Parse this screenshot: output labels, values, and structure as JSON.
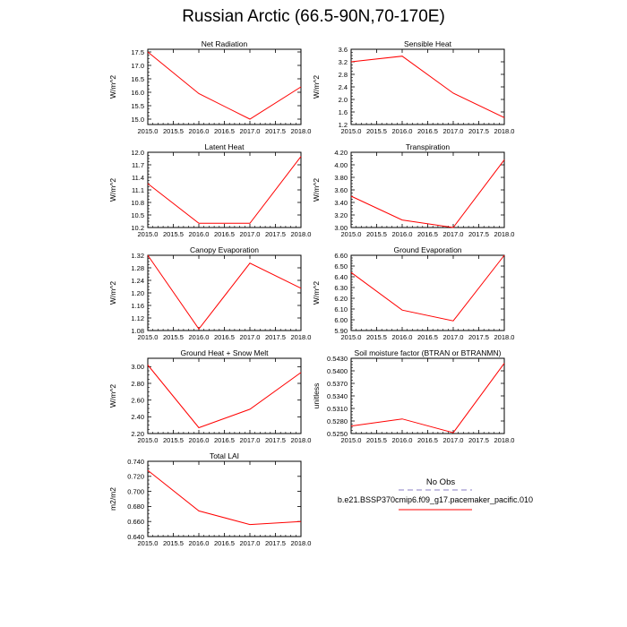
{
  "title": "Russian Arctic (66.5-90N,70-170E)",
  "colors": {
    "series": "#ff0000",
    "obs": "#b0a8d8",
    "axis": "#000000"
  },
  "chart_data": [
    {
      "type": "line",
      "title": "Net Radiation",
      "ylabel": "W/m^2",
      "x": [
        2015,
        2016,
        2017,
        2018
      ],
      "y": [
        17.5,
        15.95,
        15.0,
        16.2
      ],
      "xlim": [
        2015,
        2018
      ],
      "ylim": [
        14.8,
        17.6
      ],
      "yticks": [
        "15.0",
        "15.5",
        "16.0",
        "16.5",
        "17.0",
        "17.5"
      ],
      "xticks": [
        "2015.0",
        "2015.5",
        "2016.0",
        "2016.5",
        "2017.0",
        "2017.5",
        "2018.0"
      ]
    },
    {
      "type": "line",
      "title": "Sensible Heat",
      "ylabel": "W/m^2",
      "x": [
        2015,
        2016,
        2017,
        2018
      ],
      "y": [
        3.2,
        3.38,
        2.2,
        1.42
      ],
      "xlim": [
        2015,
        2018
      ],
      "ylim": [
        1.2,
        3.6
      ],
      "yticks": [
        "1.2",
        "1.6",
        "2.0",
        "2.4",
        "2.8",
        "3.2",
        "3.6"
      ],
      "xticks": [
        "2015.0",
        "2015.5",
        "2016.0",
        "2016.5",
        "2017.0",
        "2017.5",
        "2018.0"
      ]
    },
    {
      "type": "line",
      "title": "Latent Heat",
      "ylabel": "W/m^2",
      "x": [
        2015,
        2016,
        2017,
        2018
      ],
      "y": [
        11.25,
        10.3,
        10.3,
        11.9
      ],
      "xlim": [
        2015,
        2018
      ],
      "ylim": [
        10.2,
        12.0
      ],
      "yticks": [
        "10.2",
        "10.5",
        "10.8",
        "11.1",
        "11.4",
        "11.7",
        "12.0"
      ],
      "xticks": [
        "2015.0",
        "2015.5",
        "2016.0",
        "2016.5",
        "2017.0",
        "2017.5",
        "2018.0"
      ]
    },
    {
      "type": "line",
      "title": "Transpiration",
      "ylabel": "W/m^2",
      "x": [
        2015,
        2016,
        2017,
        2018
      ],
      "y": [
        3.5,
        3.12,
        3.0,
        4.08
      ],
      "xlim": [
        2015,
        2018
      ],
      "ylim": [
        3.0,
        4.2
      ],
      "yticks": [
        "3.00",
        "3.20",
        "3.40",
        "3.60",
        "3.80",
        "4.00",
        "4.20"
      ],
      "xticks": [
        "2015.0",
        "2015.5",
        "2016.0",
        "2016.5",
        "2017.0",
        "2017.5",
        "2018.0"
      ]
    },
    {
      "type": "line",
      "title": "Canopy Evaporation",
      "ylabel": "W/m^2",
      "x": [
        2015,
        2016,
        2017,
        2018
      ],
      "y": [
        1.32,
        1.085,
        1.295,
        1.215
      ],
      "xlim": [
        2015,
        2018
      ],
      "ylim": [
        1.08,
        1.32
      ],
      "yticks": [
        "1.08",
        "1.12",
        "1.16",
        "1.20",
        "1.24",
        "1.28",
        "1.32"
      ],
      "xticks": [
        "2015.0",
        "2015.5",
        "2016.0",
        "2016.5",
        "2017.0",
        "2017.5",
        "2018.0"
      ]
    },
    {
      "type": "line",
      "title": "Ground Evaporation",
      "ylabel": "W/m^2",
      "x": [
        2015,
        2016,
        2017,
        2018
      ],
      "y": [
        6.44,
        6.09,
        5.99,
        6.6
      ],
      "xlim": [
        2015,
        2018
      ],
      "ylim": [
        5.9,
        6.6
      ],
      "yticks": [
        "5.90",
        "6.00",
        "6.10",
        "6.20",
        "6.30",
        "6.40",
        "6.50",
        "6.60"
      ],
      "xticks": [
        "2015.0",
        "2015.5",
        "2016.0",
        "2016.5",
        "2017.0",
        "2017.5",
        "2018.0"
      ]
    },
    {
      "type": "line",
      "title": "Ground Heat + Snow Melt",
      "ylabel": "W/m^2",
      "x": [
        2015,
        2016,
        2017,
        2018
      ],
      "y": [
        3.02,
        2.27,
        2.49,
        2.93
      ],
      "xlim": [
        2015,
        2018
      ],
      "ylim": [
        2.2,
        3.1
      ],
      "yticks": [
        "2.20",
        "2.40",
        "2.60",
        "2.80",
        "3.00"
      ],
      "xticks": [
        "2015.0",
        "2015.5",
        "2016.0",
        "2016.5",
        "2017.0",
        "2017.5",
        "2018.0"
      ]
    },
    {
      "type": "line",
      "title": "Soil moisture factor (BTRAN or BTRANMN)",
      "ylabel": "unitless",
      "x": [
        2015,
        2016,
        2017,
        2018
      ],
      "y": [
        0.5268,
        0.5285,
        0.5252,
        0.5418
      ],
      "xlim": [
        2015,
        2018
      ],
      "ylim": [
        0.525,
        0.543
      ],
      "yticks": [
        "0.5250",
        "0.5280",
        "0.5310",
        "0.5340",
        "0.5370",
        "0.5400",
        "0.5430"
      ],
      "xticks": [
        "2015.0",
        "2015.5",
        "2016.0",
        "2016.5",
        "2017.0",
        "2017.5",
        "2018.0"
      ]
    },
    {
      "type": "line",
      "title": "Total LAI",
      "ylabel": "m2/m2",
      "x": [
        2015,
        2016,
        2017,
        2018
      ],
      "y": [
        0.728,
        0.674,
        0.656,
        0.66
      ],
      "xlim": [
        2015,
        2018
      ],
      "ylim": [
        0.64,
        0.74
      ],
      "yticks": [
        "0.640",
        "0.660",
        "0.680",
        "0.700",
        "0.720",
        "0.740"
      ],
      "xticks": [
        "2015.0",
        "2015.5",
        "2016.0",
        "2016.5",
        "2017.0",
        "2017.5",
        "2018.0"
      ]
    }
  ],
  "legend": {
    "obs_label": "No Obs",
    "model_label": "b.e21.BSSP370cmip6.f09_g17.pacemaker_pacific.010"
  }
}
